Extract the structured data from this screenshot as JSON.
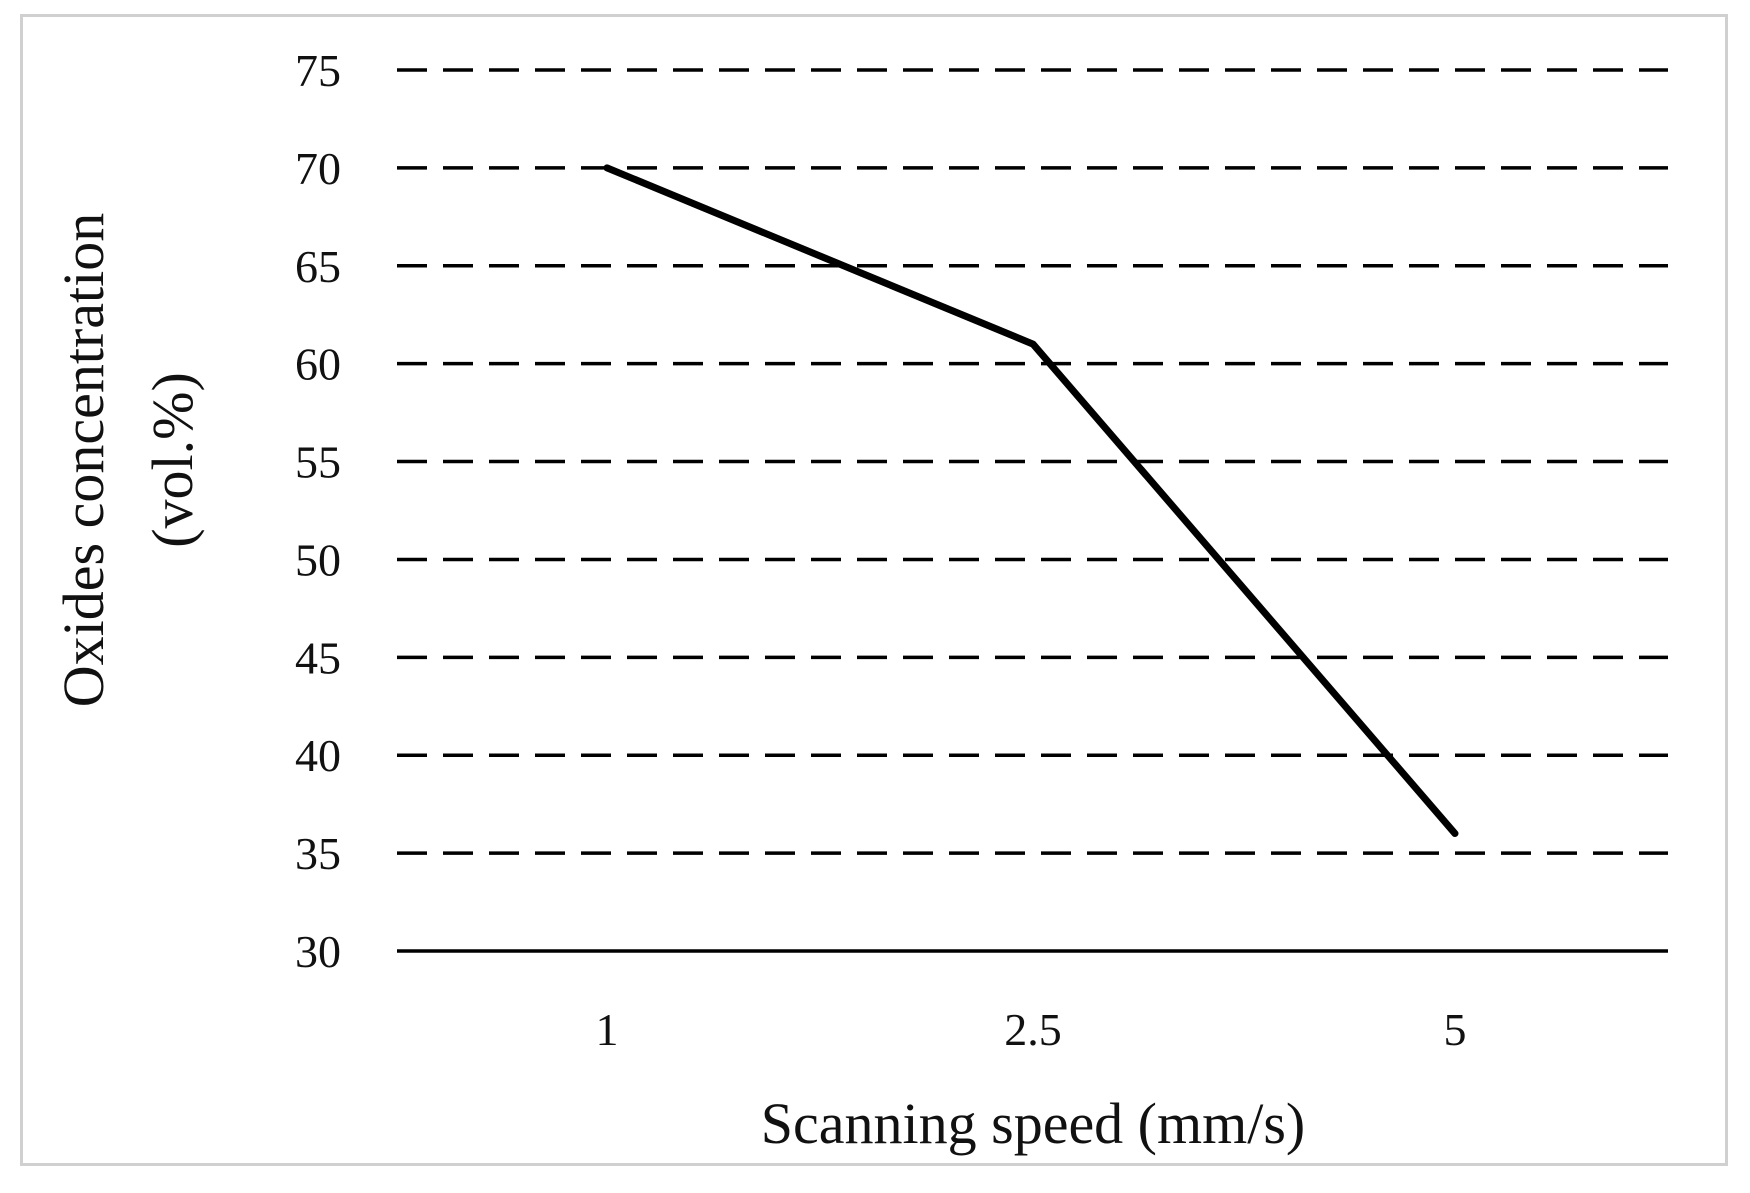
{
  "chart_data": {
    "type": "line",
    "title": "",
    "xlabel": "Scanning speed (mm/s)",
    "ylabel_line1": "Oxides concentration",
    "ylabel_line2": "(vol.%)",
    "categories": [
      "1",
      "2.5",
      "5"
    ],
    "series": [
      {
        "values": [
          70,
          61,
          36
        ]
      }
    ],
    "ylim": [
      30,
      75
    ],
    "yticks": [
      30,
      35,
      40,
      45,
      50,
      55,
      60,
      65,
      70,
      75
    ],
    "grid": true,
    "grid_style": "dashed",
    "legend": "none",
    "colors": {
      "line": "#000000",
      "grid": "#000000",
      "axis": "#000000",
      "frame": "#d0d0d0"
    }
  }
}
